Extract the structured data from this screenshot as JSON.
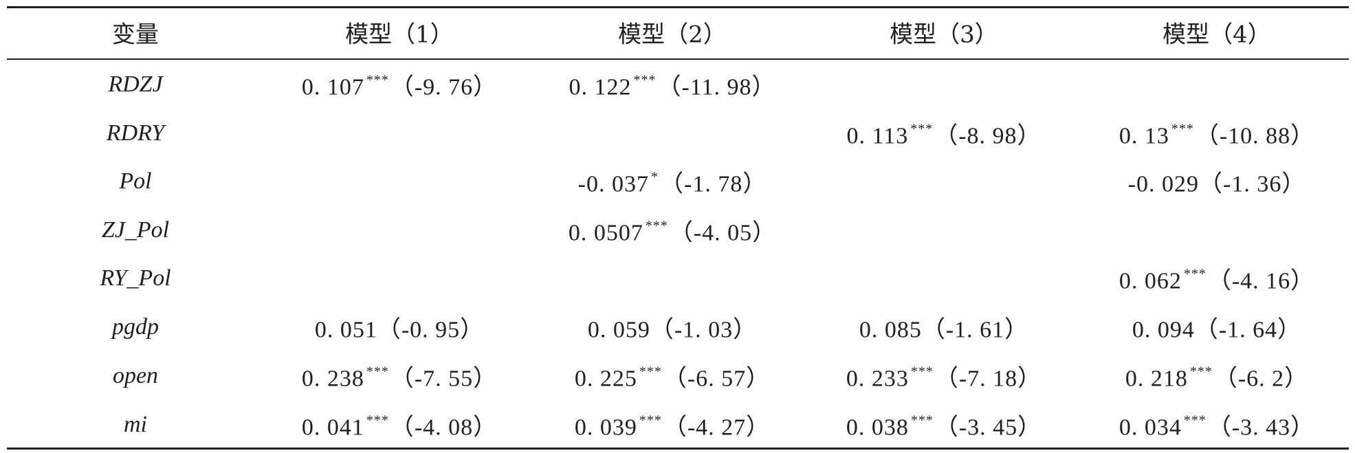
{
  "table": {
    "headers": [
      "变量",
      "模型（1）",
      "模型（2）",
      "模型（3）",
      "模型（4）"
    ],
    "rows": [
      {
        "variable": "RDZJ",
        "cells": [
          {
            "coef": "0. 107",
            "stars": "***",
            "t": "（-9. 76）"
          },
          {
            "coef": "0. 122",
            "stars": "***",
            "t": "（-11. 98）"
          },
          {
            "coef": "",
            "stars": "",
            "t": ""
          },
          {
            "coef": "",
            "stars": "",
            "t": ""
          }
        ]
      },
      {
        "variable": "RDRY",
        "cells": [
          {
            "coef": "",
            "stars": "",
            "t": ""
          },
          {
            "coef": "",
            "stars": "",
            "t": ""
          },
          {
            "coef": "0. 113",
            "stars": "***",
            "t": "（-8. 98）"
          },
          {
            "coef": "0. 13",
            "stars": "***",
            "t": "（-10. 88）"
          }
        ]
      },
      {
        "variable": "Pol",
        "cells": [
          {
            "coef": "",
            "stars": "",
            "t": ""
          },
          {
            "coef": "-0. 037",
            "stars": "*",
            "t": "（-1. 78）"
          },
          {
            "coef": "",
            "stars": "",
            "t": ""
          },
          {
            "coef": "-0. 029",
            "stars": "",
            "t": "（-1. 36）"
          }
        ]
      },
      {
        "variable": "ZJ_Pol",
        "cells": [
          {
            "coef": "",
            "stars": "",
            "t": ""
          },
          {
            "coef": "0. 0507",
            "stars": "***",
            "t": "（-4. 05）"
          },
          {
            "coef": "",
            "stars": "",
            "t": ""
          },
          {
            "coef": "",
            "stars": "",
            "t": ""
          }
        ]
      },
      {
        "variable": "RY_Pol",
        "cells": [
          {
            "coef": "",
            "stars": "",
            "t": ""
          },
          {
            "coef": "",
            "stars": "",
            "t": ""
          },
          {
            "coef": "",
            "stars": "",
            "t": ""
          },
          {
            "coef": "0. 062",
            "stars": "***",
            "t": "（-4. 16）"
          }
        ]
      },
      {
        "variable": "pgdp",
        "cells": [
          {
            "coef": "0. 051",
            "stars": "",
            "t": "（-0. 95）"
          },
          {
            "coef": "0. 059",
            "stars": "",
            "t": "（-1. 03）"
          },
          {
            "coef": "0. 085",
            "stars": "",
            "t": "（-1. 61）"
          },
          {
            "coef": "0. 094",
            "stars": "",
            "t": "（-1. 64）"
          }
        ]
      },
      {
        "variable": "open",
        "cells": [
          {
            "coef": "0. 238",
            "stars": "***",
            "t": "（-7. 55）"
          },
          {
            "coef": "0. 225",
            "stars": "***",
            "t": "（-6. 57）"
          },
          {
            "coef": "0. 233",
            "stars": "***",
            "t": "（-7. 18）"
          },
          {
            "coef": "0. 218",
            "stars": "***",
            "t": "（-6. 2）"
          }
        ]
      },
      {
        "variable": "mi",
        "cells": [
          {
            "coef": "0. 041",
            "stars": "***",
            "t": "（-4. 08）"
          },
          {
            "coef": "0. 039",
            "stars": "***",
            "t": "（-4. 27）"
          },
          {
            "coef": "0. 038",
            "stars": "***",
            "t": "（-3. 45）"
          },
          {
            "coef": "0. 034",
            "stars": "***",
            "t": "（-3. 43）"
          }
        ]
      }
    ]
  }
}
